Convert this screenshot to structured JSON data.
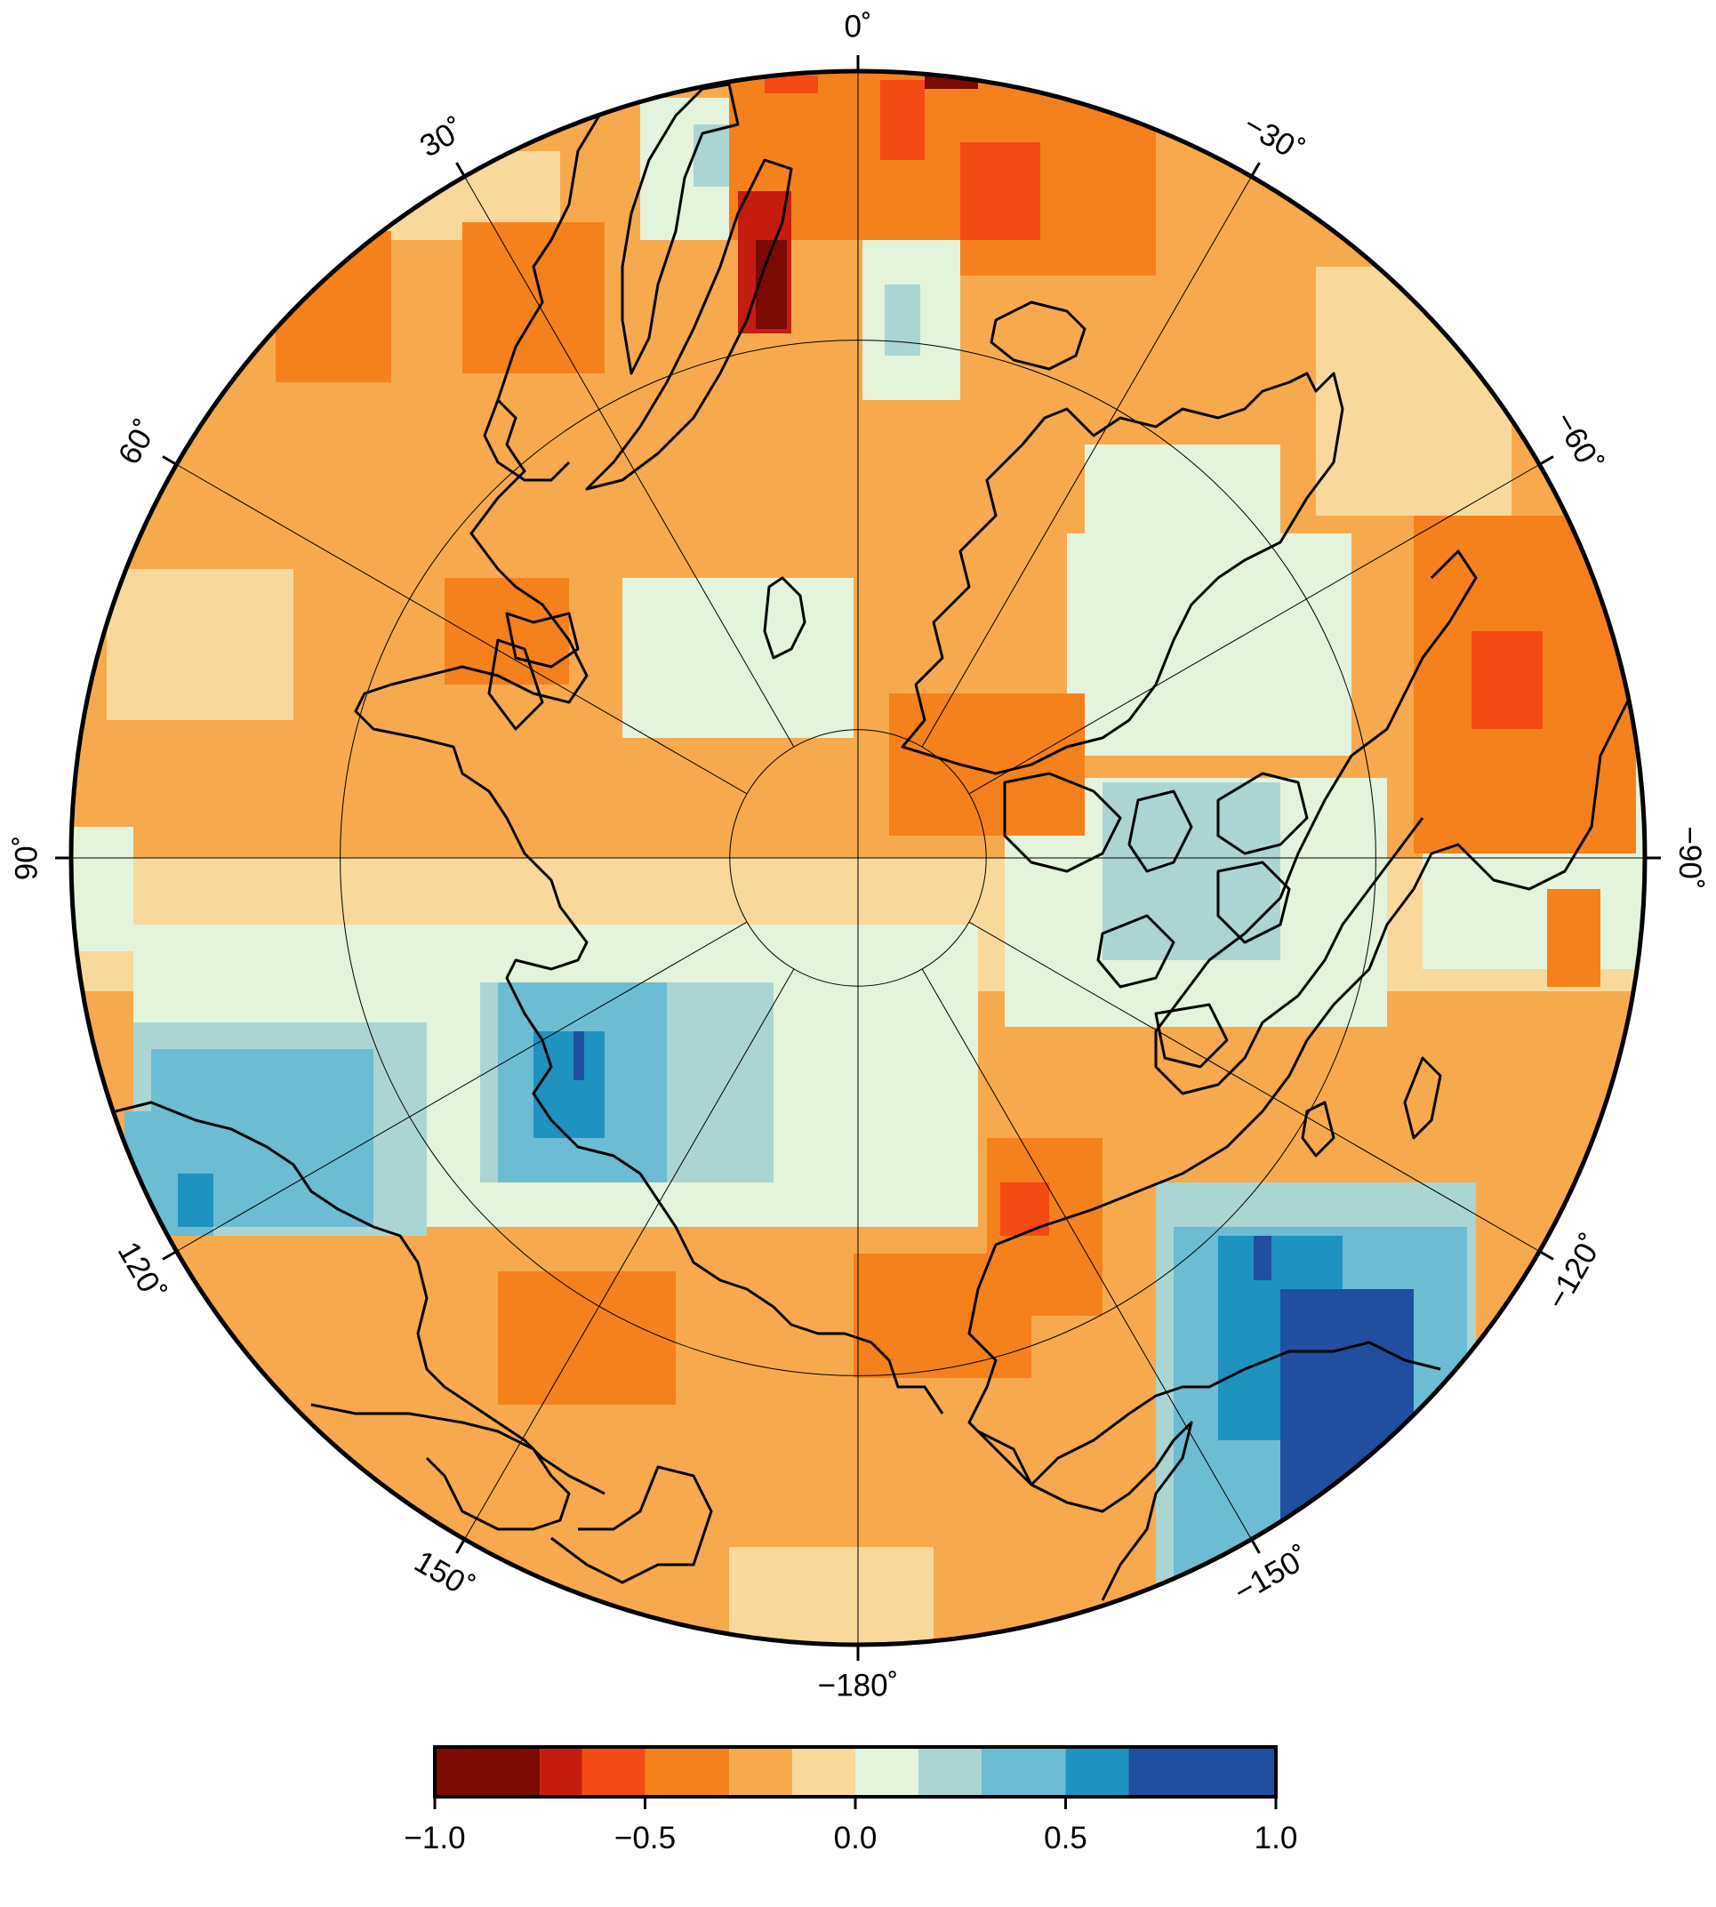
{
  "map": {
    "projection": "north polar stereographic",
    "longitude_labels": [
      {
        "lon": 0,
        "text": "0˚"
      },
      {
        "lon": -30,
        "text": "−30˚"
      },
      {
        "lon": -60,
        "text": "−60˚"
      },
      {
        "lon": -90,
        "text": "−90˚"
      },
      {
        "lon": -120,
        "text": "−120˚"
      },
      {
        "lon": -150,
        "text": "−150˚"
      },
      {
        "lon": -180,
        "text": "−180˚"
      },
      {
        "lon": 150,
        "text": "150˚"
      },
      {
        "lon": 120,
        "text": "120˚"
      },
      {
        "lon": 90,
        "text": "90˚"
      },
      {
        "lon": 60,
        "text": "60˚"
      },
      {
        "lon": 30,
        "text": "30˚"
      }
    ],
    "latitude_circles_deg": [
      85,
      70
    ],
    "outer_boundary_lat_deg": 60
  },
  "colorbar": {
    "min": -1.0,
    "max": 1.0,
    "colors": [
      "#7a0a02",
      "#c41c0e",
      "#f44a13",
      "#f5811c",
      "#f6aa4d",
      "#f8d99b",
      "#e3f3dc",
      "#abd5d3",
      "#6cbcd3",
      "#1f93c0",
      "#1f4f9e"
    ],
    "bounds": [
      -1.0,
      -0.75,
      -0.65,
      -0.5,
      -0.3,
      -0.15,
      0.0,
      0.15,
      0.3,
      0.5,
      0.65,
      1.0
    ],
    "ticks": [
      {
        "value": -1.0,
        "label": "−1.0"
      },
      {
        "value": -0.5,
        "label": "−0.5"
      },
      {
        "value": 0.0,
        "label": "0.0"
      },
      {
        "value": 0.5,
        "label": "0.5"
      },
      {
        "value": 1.0,
        "label": "1.0"
      }
    ]
  }
}
